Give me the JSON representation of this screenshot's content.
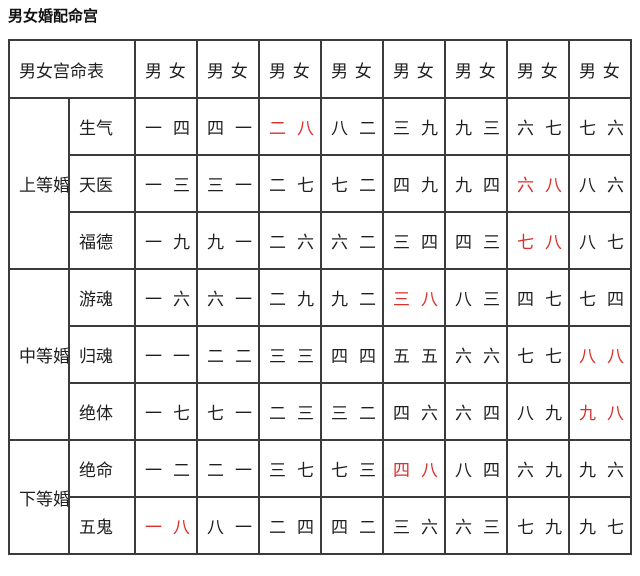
{
  "page_title": "男女婚配命宫",
  "colors": {
    "background": "#ffffff",
    "text": "#1f1f1f",
    "border": "#3b3b3b",
    "highlight_red": "#d9302c"
  },
  "table": {
    "corner_header": "男女宫命表",
    "column_header": "男 女",
    "column_count": 8,
    "groups": [
      {
        "label": "上等婚",
        "rows": [
          {
            "label": "生气",
            "cells": [
              {
                "male": "一",
                "female": "四",
                "highlight": false
              },
              {
                "male": "四",
                "female": "一",
                "highlight": false
              },
              {
                "male": "二",
                "female": "八",
                "highlight": true
              },
              {
                "male": "八",
                "female": "二",
                "highlight": false
              },
              {
                "male": "三",
                "female": "九",
                "highlight": false
              },
              {
                "male": "九",
                "female": "三",
                "highlight": false
              },
              {
                "male": "六",
                "female": "七",
                "highlight": false
              },
              {
                "male": "七",
                "female": "六",
                "highlight": false
              }
            ]
          },
          {
            "label": "天医",
            "cells": [
              {
                "male": "一",
                "female": "三",
                "highlight": false
              },
              {
                "male": "三",
                "female": "一",
                "highlight": false
              },
              {
                "male": "二",
                "female": "七",
                "highlight": false
              },
              {
                "male": "七",
                "female": "二",
                "highlight": false
              },
              {
                "male": "四",
                "female": "九",
                "highlight": false
              },
              {
                "male": "九",
                "female": "四",
                "highlight": false
              },
              {
                "male": "六",
                "female": "八",
                "highlight": true
              },
              {
                "male": "八",
                "female": "六",
                "highlight": false
              }
            ]
          },
          {
            "label": "福德",
            "cells": [
              {
                "male": "一",
                "female": "九",
                "highlight": false
              },
              {
                "male": "九",
                "female": "一",
                "highlight": false
              },
              {
                "male": "二",
                "female": "六",
                "highlight": false
              },
              {
                "male": "六",
                "female": "二",
                "highlight": false
              },
              {
                "male": "三",
                "female": "四",
                "highlight": false
              },
              {
                "male": "四",
                "female": "三",
                "highlight": false
              },
              {
                "male": "七",
                "female": "八",
                "highlight": true
              },
              {
                "male": "八",
                "female": "七",
                "highlight": false
              }
            ]
          }
        ]
      },
      {
        "label": "中等婚",
        "rows": [
          {
            "label": "游魂",
            "cells": [
              {
                "male": "一",
                "female": "六",
                "highlight": false
              },
              {
                "male": "六",
                "female": "一",
                "highlight": false
              },
              {
                "male": "二",
                "female": "九",
                "highlight": false
              },
              {
                "male": "九",
                "female": "二",
                "highlight": false
              },
              {
                "male": "三",
                "female": "八",
                "highlight": true
              },
              {
                "male": "八",
                "female": "三",
                "highlight": false
              },
              {
                "male": "四",
                "female": "七",
                "highlight": false
              },
              {
                "male": "七",
                "female": "四",
                "highlight": false
              }
            ]
          },
          {
            "label": "归魂",
            "cells": [
              {
                "male": "一",
                "female": "一",
                "highlight": false
              },
              {
                "male": "二",
                "female": "二",
                "highlight": false
              },
              {
                "male": "三",
                "female": "三",
                "highlight": false
              },
              {
                "male": "四",
                "female": "四",
                "highlight": false
              },
              {
                "male": "五",
                "female": "五",
                "highlight": false
              },
              {
                "male": "六",
                "female": "六",
                "highlight": false
              },
              {
                "male": "七",
                "female": "七",
                "highlight": false
              },
              {
                "male": "八",
                "female": "八",
                "highlight": true
              }
            ]
          },
          {
            "label": "绝体",
            "cells": [
              {
                "male": "一",
                "female": "七",
                "highlight": false
              },
              {
                "male": "七",
                "female": "一",
                "highlight": false
              },
              {
                "male": "二",
                "female": "三",
                "highlight": false
              },
              {
                "male": "三",
                "female": "二",
                "highlight": false
              },
              {
                "male": "四",
                "female": "六",
                "highlight": false
              },
              {
                "male": "六",
                "female": "四",
                "highlight": false
              },
              {
                "male": "八",
                "female": "九",
                "highlight": false
              },
              {
                "male": "九",
                "female": "八",
                "highlight": true
              }
            ]
          }
        ]
      },
      {
        "label": "下等婚",
        "rows": [
          {
            "label": "绝命",
            "cells": [
              {
                "male": "一",
                "female": "二",
                "highlight": false
              },
              {
                "male": "二",
                "female": "一",
                "highlight": false
              },
              {
                "male": "三",
                "female": "七",
                "highlight": false
              },
              {
                "male": "七",
                "female": "三",
                "highlight": false
              },
              {
                "male": "四",
                "female": "八",
                "highlight": true
              },
              {
                "male": "八",
                "female": "四",
                "highlight": false
              },
              {
                "male": "六",
                "female": "九",
                "highlight": false
              },
              {
                "male": "九",
                "female": "六",
                "highlight": false
              }
            ]
          },
          {
            "label": "五鬼",
            "cells": [
              {
                "male": "一",
                "female": "八",
                "highlight": true
              },
              {
                "male": "八",
                "female": "一",
                "highlight": false
              },
              {
                "male": "二",
                "female": "四",
                "highlight": false
              },
              {
                "male": "四",
                "female": "二",
                "highlight": false
              },
              {
                "male": "三",
                "female": "六",
                "highlight": false
              },
              {
                "male": "六",
                "female": "三",
                "highlight": false
              },
              {
                "male": "七",
                "female": "九",
                "highlight": false
              },
              {
                "male": "九",
                "female": "七",
                "highlight": false
              }
            ]
          }
        ]
      }
    ]
  }
}
